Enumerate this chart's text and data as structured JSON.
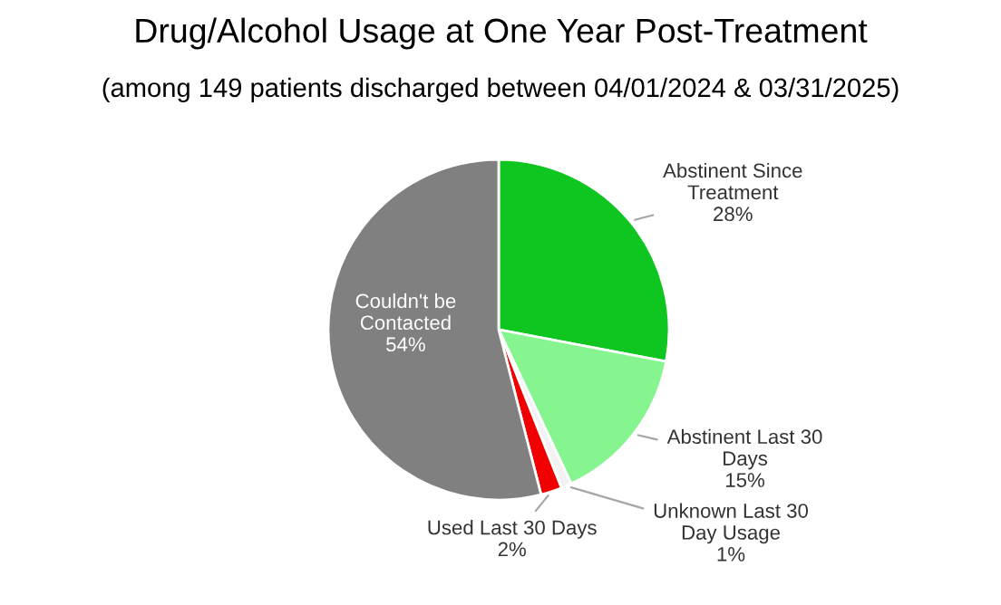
{
  "chart_data": {
    "type": "pie",
    "title": "Drug/Alcohol Usage at One Year Post-Treatment",
    "subtitle": "(among 149 patients discharged between 04/01/2024 & 03/31/2025)",
    "categories": [
      "Abstinent Since Treatment",
      "Abstinent Last 30 Days",
      "Unknown Last 30 Day Usage",
      "Used Last 30 Days",
      "Couldn't be Contacted"
    ],
    "values": [
      28,
      15,
      1,
      2,
      54
    ],
    "colors": [
      "#0fc51f",
      "#86f58f",
      "#f2f2f2",
      "#f00000",
      "#808080"
    ],
    "value_labels": [
      "28%",
      "15%",
      "1%",
      "2%",
      "54%"
    ],
    "legend": false
  }
}
